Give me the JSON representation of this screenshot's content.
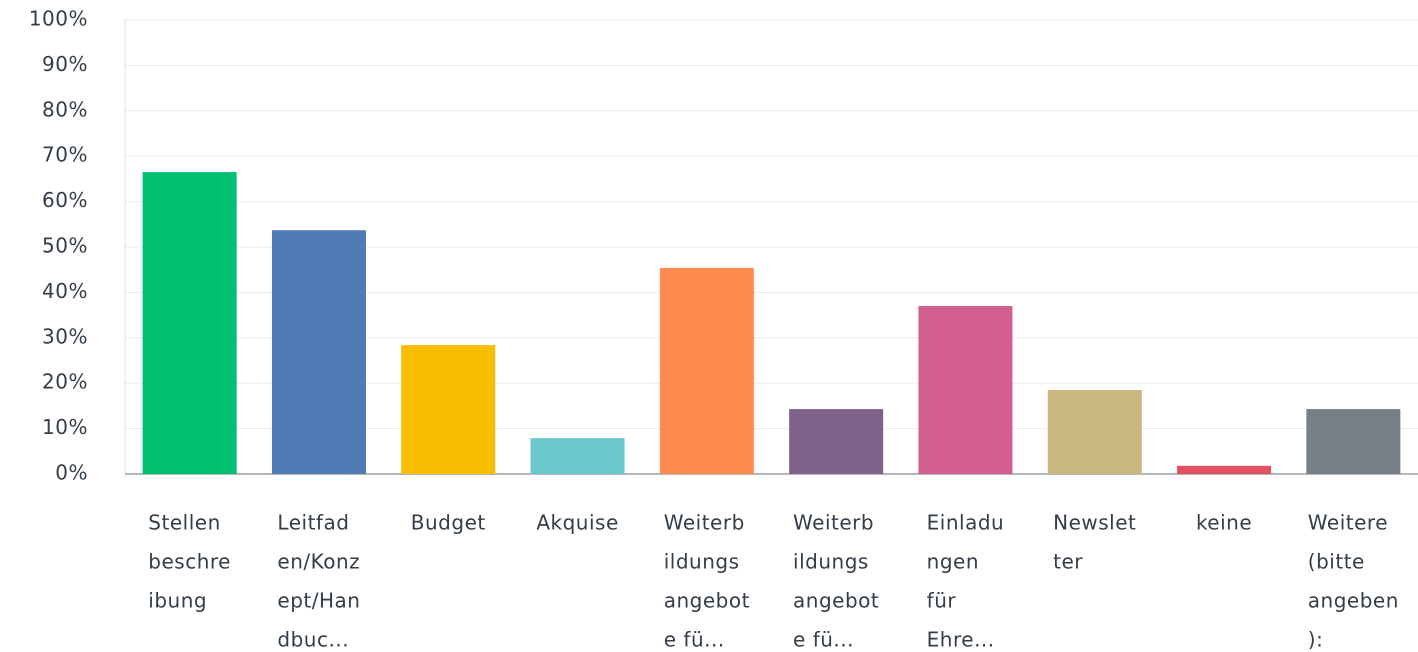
{
  "chart_data": {
    "type": "bar",
    "categories": [
      [
        "Stellen",
        "beschre",
        "ibung"
      ],
      [
        "Leitfad",
        "en/Konz",
        "ept/Han",
        "dbuc..."
      ],
      [
        "Budget"
      ],
      [
        "Akquise"
      ],
      [
        "Weiterb",
        "ildungs",
        "angebot",
        "e fü..."
      ],
      [
        "Weiterb",
        "ildungs",
        "angebot",
        "e fü..."
      ],
      [
        "Einladu",
        "ngen",
        "für",
        "Ehre..."
      ],
      [
        "Newslet",
        "ter"
      ],
      [
        "keine"
      ],
      [
        "Weitere",
        "(bitte",
        "angeben",
        "):"
      ]
    ],
    "values": [
      66.5,
      53.7,
      28.4,
      7.9,
      45.4,
      14.3,
      37.0,
      18.5,
      1.8,
      14.3
    ],
    "colors": [
      "#00bf6f",
      "#507cb6",
      "#f9be00",
      "#6bc8cd",
      "#ff8b4f",
      "#7f628b",
      "#d25f90",
      "#c9b77d",
      "#e05260",
      "#768086"
    ],
    "ylim": [
      0,
      100
    ],
    "yticks": [
      {
        "value": 0,
        "label": "0%"
      },
      {
        "value": 10,
        "label": "10%"
      },
      {
        "value": 20,
        "label": "20%"
      },
      {
        "value": 30,
        "label": "30%"
      },
      {
        "value": 40,
        "label": "40%"
      },
      {
        "value": 50,
        "label": "50%"
      },
      {
        "value": 60,
        "label": "60%"
      },
      {
        "value": 70,
        "label": "70%"
      },
      {
        "value": 80,
        "label": "80%"
      },
      {
        "value": 90,
        "label": "90%"
      },
      {
        "value": 100,
        "label": "100%"
      }
    ],
    "grid": true
  }
}
